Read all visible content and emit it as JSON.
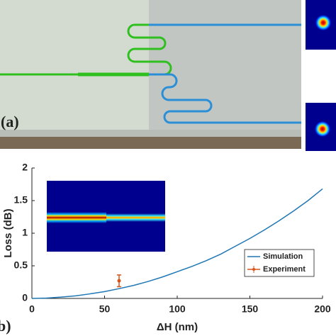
{
  "chart_data": {
    "type": "line",
    "panel_labels": [
      "(a)",
      "b)"
    ],
    "x_label": "ΔH (nm)",
    "y_label": "Loss (dB)",
    "xlim": [
      0,
      200
    ],
    "ylim": [
      0,
      2
    ],
    "xticks": [
      0,
      50,
      100,
      150,
      200
    ],
    "yticks": [
      0,
      0.5,
      1,
      1.5,
      2
    ],
    "legend": "lower right",
    "series": [
      {
        "name": "Simulation",
        "color": "#1f77b4",
        "x": [
          0,
          10,
          20,
          30,
          40,
          50,
          60,
          70,
          80,
          90,
          100,
          110,
          120,
          130,
          140,
          150,
          160,
          170,
          180,
          190,
          200
        ],
        "values": [
          0,
          0.005,
          0.02,
          0.04,
          0.07,
          0.105,
          0.15,
          0.2,
          0.26,
          0.33,
          0.41,
          0.49,
          0.58,
          0.68,
          0.8,
          0.92,
          1.05,
          1.19,
          1.34,
          1.5,
          1.68
        ]
      },
      {
        "name": "Experiment",
        "color": "#d95319",
        "x": [
          60
        ],
        "values": [
          0.27
        ],
        "errors": [
          0.09
        ]
      }
    ]
  }
}
